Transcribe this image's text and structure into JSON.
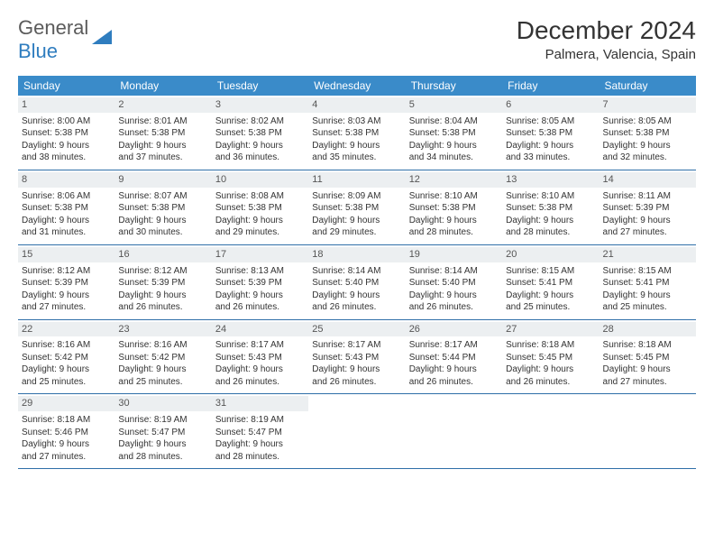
{
  "logo": {
    "text1": "General",
    "text2": "Blue"
  },
  "title": "December 2024",
  "location": "Palmera, Valencia, Spain",
  "colors": {
    "header_bg": "#3a8bc9",
    "row_border": "#2f6fa8",
    "daynum_bg": "#eceff1",
    "logo_gray": "#5b5b5b",
    "logo_blue": "#2f7dbf"
  },
  "weekdays": [
    "Sunday",
    "Monday",
    "Tuesday",
    "Wednesday",
    "Thursday",
    "Friday",
    "Saturday"
  ],
  "weeks": [
    [
      {
        "n": "1",
        "sr": "8:00 AM",
        "ss": "5:38 PM",
        "dl": "9 hours and 38 minutes."
      },
      {
        "n": "2",
        "sr": "8:01 AM",
        "ss": "5:38 PM",
        "dl": "9 hours and 37 minutes."
      },
      {
        "n": "3",
        "sr": "8:02 AM",
        "ss": "5:38 PM",
        "dl": "9 hours and 36 minutes."
      },
      {
        "n": "4",
        "sr": "8:03 AM",
        "ss": "5:38 PM",
        "dl": "9 hours and 35 minutes."
      },
      {
        "n": "5",
        "sr": "8:04 AM",
        "ss": "5:38 PM",
        "dl": "9 hours and 34 minutes."
      },
      {
        "n": "6",
        "sr": "8:05 AM",
        "ss": "5:38 PM",
        "dl": "9 hours and 33 minutes."
      },
      {
        "n": "7",
        "sr": "8:05 AM",
        "ss": "5:38 PM",
        "dl": "9 hours and 32 minutes."
      }
    ],
    [
      {
        "n": "8",
        "sr": "8:06 AM",
        "ss": "5:38 PM",
        "dl": "9 hours and 31 minutes."
      },
      {
        "n": "9",
        "sr": "8:07 AM",
        "ss": "5:38 PM",
        "dl": "9 hours and 30 minutes."
      },
      {
        "n": "10",
        "sr": "8:08 AM",
        "ss": "5:38 PM",
        "dl": "9 hours and 29 minutes."
      },
      {
        "n": "11",
        "sr": "8:09 AM",
        "ss": "5:38 PM",
        "dl": "9 hours and 29 minutes."
      },
      {
        "n": "12",
        "sr": "8:10 AM",
        "ss": "5:38 PM",
        "dl": "9 hours and 28 minutes."
      },
      {
        "n": "13",
        "sr": "8:10 AM",
        "ss": "5:38 PM",
        "dl": "9 hours and 28 minutes."
      },
      {
        "n": "14",
        "sr": "8:11 AM",
        "ss": "5:39 PM",
        "dl": "9 hours and 27 minutes."
      }
    ],
    [
      {
        "n": "15",
        "sr": "8:12 AM",
        "ss": "5:39 PM",
        "dl": "9 hours and 27 minutes."
      },
      {
        "n": "16",
        "sr": "8:12 AM",
        "ss": "5:39 PM",
        "dl": "9 hours and 26 minutes."
      },
      {
        "n": "17",
        "sr": "8:13 AM",
        "ss": "5:39 PM",
        "dl": "9 hours and 26 minutes."
      },
      {
        "n": "18",
        "sr": "8:14 AM",
        "ss": "5:40 PM",
        "dl": "9 hours and 26 minutes."
      },
      {
        "n": "19",
        "sr": "8:14 AM",
        "ss": "5:40 PM",
        "dl": "9 hours and 26 minutes."
      },
      {
        "n": "20",
        "sr": "8:15 AM",
        "ss": "5:41 PM",
        "dl": "9 hours and 25 minutes."
      },
      {
        "n": "21",
        "sr": "8:15 AM",
        "ss": "5:41 PM",
        "dl": "9 hours and 25 minutes."
      }
    ],
    [
      {
        "n": "22",
        "sr": "8:16 AM",
        "ss": "5:42 PM",
        "dl": "9 hours and 25 minutes."
      },
      {
        "n": "23",
        "sr": "8:16 AM",
        "ss": "5:42 PM",
        "dl": "9 hours and 25 minutes."
      },
      {
        "n": "24",
        "sr": "8:17 AM",
        "ss": "5:43 PM",
        "dl": "9 hours and 26 minutes."
      },
      {
        "n": "25",
        "sr": "8:17 AM",
        "ss": "5:43 PM",
        "dl": "9 hours and 26 minutes."
      },
      {
        "n": "26",
        "sr": "8:17 AM",
        "ss": "5:44 PM",
        "dl": "9 hours and 26 minutes."
      },
      {
        "n": "27",
        "sr": "8:18 AM",
        "ss": "5:45 PM",
        "dl": "9 hours and 26 minutes."
      },
      {
        "n": "28",
        "sr": "8:18 AM",
        "ss": "5:45 PM",
        "dl": "9 hours and 27 minutes."
      }
    ],
    [
      {
        "n": "29",
        "sr": "8:18 AM",
        "ss": "5:46 PM",
        "dl": "9 hours and 27 minutes."
      },
      {
        "n": "30",
        "sr": "8:19 AM",
        "ss": "5:47 PM",
        "dl": "9 hours and 28 minutes."
      },
      {
        "n": "31",
        "sr": "8:19 AM",
        "ss": "5:47 PM",
        "dl": "9 hours and 28 minutes."
      },
      null,
      null,
      null,
      null
    ]
  ],
  "labels": {
    "sunrise": "Sunrise:",
    "sunset": "Sunset:",
    "daylight": "Daylight:"
  }
}
